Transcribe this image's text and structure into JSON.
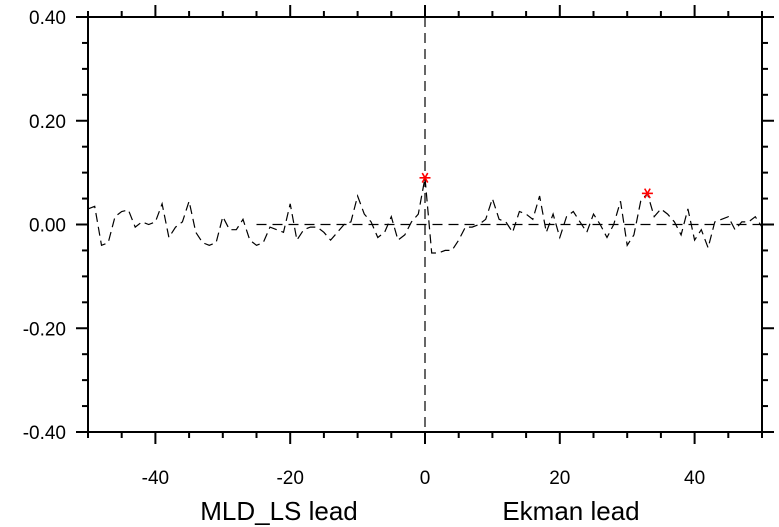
{
  "chart_data": {
    "type": "line",
    "title": "",
    "xlim": [
      -50,
      50
    ],
    "ylim": [
      -0.4,
      0.4
    ],
    "xticks": [
      -40,
      -20,
      0,
      20,
      40
    ],
    "xtick_labels": [
      "-40",
      "-20",
      "0",
      "20",
      "40"
    ],
    "yticks": [
      0.4,
      0.2,
      0.0,
      -0.2,
      -0.4
    ],
    "ytick_labels": [
      "0.40",
      "0.20",
      "0.00",
      "-0.20",
      "-0.40"
    ],
    "x_minor_step": 5,
    "y_minor_step": 0.05,
    "xlabel_left": "MLD_LS lead",
    "xlabel_right": "Ekman lead",
    "grid": false,
    "line_style": "dashed",
    "line_color": "#000000",
    "zero_line": true,
    "vertical_line_at": 0,
    "marker_color": "#ff0000",
    "markers": [
      {
        "x": 0,
        "y": 0.09
      },
      {
        "x": 33,
        "y": 0.06
      }
    ],
    "series": [
      {
        "x": [
          -50,
          -49,
          -48,
          -47,
          -46,
          -45,
          -44,
          -43,
          -42,
          -41,
          -40,
          -39,
          -38,
          -37,
          -36,
          -35,
          -34,
          -33,
          -32,
          -31,
          -30,
          -29,
          -28,
          -27,
          -26,
          -25,
          -24,
          -23,
          -22,
          -21,
          -20,
          -19,
          -18,
          -17,
          -16,
          -15,
          -14,
          -13,
          -12,
          -11,
          -10,
          -9,
          -8,
          -7,
          -6,
          -5,
          -4,
          -3,
          -2,
          -1,
          0,
          1,
          2,
          3,
          4,
          5,
          6,
          7,
          8,
          9,
          10,
          11,
          12,
          13,
          14,
          15,
          16,
          17,
          18,
          19,
          20,
          21,
          22,
          23,
          24,
          25,
          26,
          27,
          28,
          29,
          30,
          31,
          32,
          33,
          34,
          35,
          36,
          37,
          38,
          39,
          40,
          41,
          42,
          43,
          44,
          45,
          46,
          47,
          48,
          49,
          50
        ],
        "values": [
          0.03,
          0.035,
          -0.04,
          -0.035,
          0.015,
          0.025,
          0.028,
          -0.005,
          0.005,
          0.0,
          0.005,
          0.04,
          -0.025,
          -0.005,
          0.005,
          0.045,
          -0.015,
          -0.035,
          -0.04,
          -0.035,
          0.015,
          -0.01,
          -0.01,
          0.01,
          -0.03,
          -0.04,
          -0.035,
          -0.005,
          -0.01,
          -0.015,
          0.04,
          -0.03,
          -0.01,
          -0.005,
          -0.005,
          -0.015,
          -0.03,
          -0.015,
          0.0,
          0.005,
          0.055,
          0.02,
          0.005,
          -0.025,
          -0.015,
          0.015,
          -0.03,
          -0.02,
          0.005,
          0.02,
          0.09,
          -0.055,
          -0.055,
          -0.05,
          -0.05,
          -0.03,
          -0.005,
          -0.005,
          0.0,
          0.01,
          0.05,
          0.01,
          0.005,
          -0.015,
          0.025,
          0.02,
          0.01,
          0.055,
          -0.015,
          0.02,
          -0.025,
          0.015,
          0.025,
          0.005,
          -0.015,
          0.02,
          0.0,
          -0.025,
          0.0,
          0.045,
          -0.04,
          -0.02,
          0.045,
          0.06,
          0.015,
          0.03,
          0.02,
          0.005,
          -0.02,
          0.03,
          -0.03,
          -0.01,
          -0.045,
          0.005,
          0.01,
          0.015,
          -0.01,
          0.005,
          0.005,
          0.015,
          -0.005
        ]
      }
    ]
  }
}
